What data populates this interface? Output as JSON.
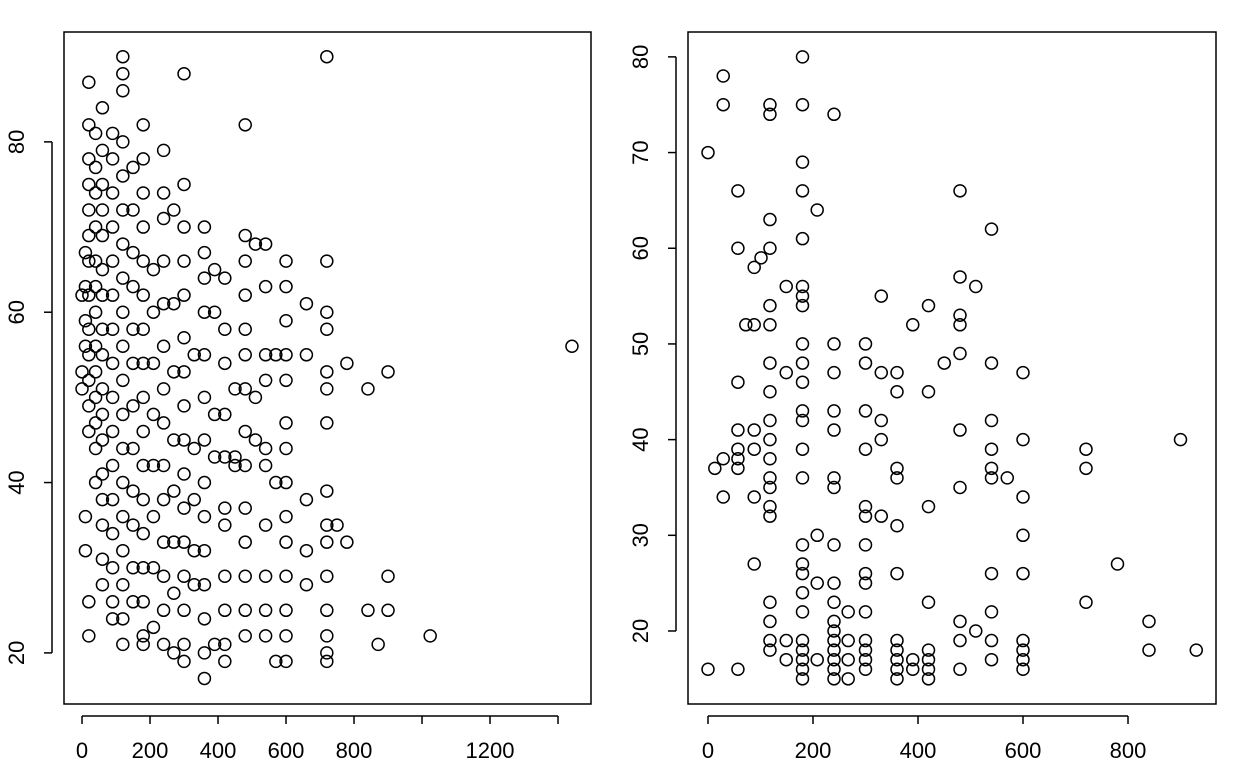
{
  "chart_data": [
    {
      "type": "scatter",
      "color": "#000000",
      "x": [
        0,
        0,
        0,
        10,
        10,
        10,
        10,
        10,
        10,
        20,
        20,
        20,
        20,
        20,
        20,
        20,
        20,
        20,
        20,
        20,
        20,
        20,
        20,
        20,
        40,
        40,
        40,
        40,
        40,
        40,
        40,
        40,
        40,
        40,
        40,
        40,
        40,
        60,
        60,
        60,
        60,
        60,
        60,
        60,
        60,
        60,
        60,
        60,
        60,
        60,
        60,
        60,
        60,
        60,
        90,
        90,
        90,
        90,
        90,
        90,
        90,
        90,
        90,
        90,
        90,
        90,
        90,
        90,
        90,
        90,
        120,
        120,
        120,
        120,
        120,
        120,
        120,
        120,
        120,
        120,
        120,
        120,
        120,
        120,
        120,
        120,
        120,
        120,
        120,
        150,
        150,
        150,
        150,
        150,
        150,
        150,
        150,
        150,
        150,
        150,
        150,
        180,
        180,
        180,
        180,
        180,
        180,
        180,
        180,
        180,
        180,
        180,
        180,
        180,
        180,
        180,
        180,
        180,
        210,
        210,
        210,
        210,
        210,
        210,
        210,
        210,
        240,
        240,
        240,
        240,
        240,
        240,
        240,
        240,
        240,
        240,
        240,
        240,
        240,
        240,
        270,
        270,
        270,
        270,
        270,
        270,
        270,
        270,
        300,
        300,
        300,
        300,
        300,
        300,
        300,
        300,
        300,
        300,
        300,
        300,
        300,
        300,
        300,
        300,
        330,
        330,
        330,
        330,
        330,
        360,
        360,
        360,
        360,
        360,
        360,
        360,
        360,
        360,
        360,
        360,
        360,
        360,
        360,
        390,
        390,
        390,
        390,
        390,
        420,
        420,
        420,
        420,
        420,
        420,
        420,
        420,
        420,
        420,
        420,
        450,
        450,
        450,
        480,
        480,
        480,
        480,
        480,
        480,
        480,
        480,
        480,
        480,
        480,
        480,
        480,
        480,
        510,
        510,
        510,
        540,
        540,
        540,
        540,
        540,
        540,
        540,
        540,
        540,
        540,
        570,
        570,
        570,
        600,
        600,
        600,
        600,
        600,
        600,
        600,
        600,
        600,
        600,
        600,
        600,
        600,
        600,
        660,
        660,
        660,
        660,
        660,
        720,
        720,
        720,
        720,
        720,
        720,
        720,
        720,
        720,
        720,
        720,
        720,
        720,
        720,
        720,
        750,
        779,
        779,
        841,
        841,
        871,
        900,
        900,
        900,
        1024,
        1441
      ],
      "values": [
        53,
        51,
        62,
        67,
        63,
        59,
        56,
        36,
        32,
        82,
        78,
        75,
        72,
        69,
        66,
        62,
        58,
        55,
        52,
        49,
        46,
        22,
        26,
        87,
        81,
        77,
        74,
        70,
        66,
        63,
        60,
        56,
        53,
        50,
        47,
        44,
        40,
        84,
        79,
        75,
        72,
        69,
        65,
        62,
        58,
        55,
        51,
        48,
        45,
        41,
        38,
        35,
        31,
        28,
        81,
        78,
        74,
        70,
        66,
        62,
        58,
        54,
        50,
        46,
        42,
        38,
        34,
        30,
        26,
        24,
        90,
        88,
        86,
        80,
        76,
        72,
        68,
        64,
        60,
        56,
        52,
        48,
        44,
        40,
        36,
        32,
        28,
        24,
        21,
        77,
        72,
        67,
        63,
        58,
        54,
        49,
        44,
        39,
        35,
        30,
        26,
        82,
        78,
        74,
        70,
        66,
        62,
        58,
        54,
        50,
        46,
        42,
        38,
        34,
        30,
        26,
        22,
        21,
        65,
        60,
        54,
        48,
        42,
        36,
        30,
        23,
        79,
        74,
        71,
        66,
        61,
        56,
        51,
        47,
        42,
        38,
        33,
        29,
        25,
        21,
        72,
        61,
        53,
        45,
        39,
        33,
        27,
        20,
        88,
        75,
        70,
        66,
        62,
        57,
        53,
        49,
        45,
        41,
        37,
        33,
        29,
        25,
        21,
        19,
        55,
        44,
        38,
        32,
        28,
        70,
        67,
        64,
        60,
        55,
        50,
        45,
        40,
        36,
        32,
        28,
        24,
        20,
        17,
        65,
        60,
        48,
        43,
        21,
        64,
        58,
        54,
        48,
        43,
        37,
        35,
        29,
        25,
        21,
        19,
        51,
        43,
        42,
        82,
        69,
        66,
        62,
        58,
        55,
        51,
        46,
        42,
        37,
        33,
        29,
        25,
        22,
        68,
        50,
        45,
        68,
        63,
        55,
        52,
        44,
        42,
        35,
        29,
        25,
        22,
        55,
        40,
        19,
        66,
        63,
        59,
        55,
        52,
        47,
        44,
        40,
        36,
        33,
        29,
        25,
        22,
        19,
        61,
        55,
        38,
        32,
        28,
        90,
        66,
        60,
        58,
        53,
        51,
        47,
        39,
        35,
        33,
        29,
        25,
        22,
        20,
        19,
        35,
        54,
        33,
        51,
        25,
        21,
        53,
        29,
        25,
        22,
        56
      ],
      "xlim": [
        -53,
        1497
      ],
      "ylim": [
        14,
        92.9
      ],
      "xticks": [
        0,
        200,
        400,
        600,
        800,
        {
          "value": 1000,
          "label": null
        },
        1200,
        {
          "value": 1400,
          "label": null
        }
      ],
      "yticks": [
        20,
        40,
        60,
        80
      ]
    },
    {
      "type": "scatter",
      "color": "#000000",
      "x": [
        0,
        0,
        13,
        29,
        29,
        29,
        29,
        57,
        57,
        57,
        57,
        57,
        57,
        57,
        57,
        72,
        88,
        88,
        88,
        88,
        88,
        88,
        101,
        118,
        118,
        118,
        118,
        118,
        118,
        118,
        118,
        118,
        118,
        118,
        118,
        118,
        118,
        118,
        118,
        118,
        118,
        118,
        149,
        149,
        149,
        149,
        180,
        180,
        180,
        180,
        180,
        180,
        180,
        180,
        180,
        180,
        180,
        180,
        180,
        180,
        180,
        180,
        180,
        180,
        180,
        180,
        180,
        180,
        180,
        180,
        180,
        208,
        208,
        208,
        208,
        240,
        240,
        240,
        240,
        240,
        240,
        240,
        240,
        240,
        240,
        240,
        240,
        240,
        240,
        240,
        240,
        240,
        267,
        267,
        267,
        267,
        300,
        300,
        300,
        300,
        300,
        300,
        300,
        300,
        300,
        300,
        300,
        300,
        300,
        300,
        330,
        330,
        330,
        330,
        330,
        360,
        360,
        360,
        360,
        360,
        360,
        360,
        360,
        360,
        360,
        360,
        390,
        390,
        390,
        420,
        420,
        420,
        420,
        420,
        420,
        420,
        420,
        450,
        480,
        480,
        480,
        480,
        480,
        480,
        480,
        480,
        480,
        480,
        510,
        510,
        540,
        540,
        540,
        540,
        540,
        540,
        540,
        540,
        540,
        540,
        570,
        600,
        600,
        600,
        600,
        600,
        600,
        600,
        600,
        600,
        720,
        720,
        720,
        780,
        840,
        840,
        900,
        930
      ],
      "values": [
        70,
        16,
        37,
        38,
        34,
        78,
        75,
        66,
        60,
        46,
        41,
        39,
        38,
        37,
        16,
        52,
        52,
        58,
        41,
        39,
        34,
        27,
        59,
        63,
        75,
        74,
        60,
        54,
        52,
        48,
        45,
        42,
        40,
        38,
        36,
        35,
        33,
        32,
        23,
        21,
        19,
        18,
        19,
        17,
        56,
        47,
        80,
        75,
        69,
        66,
        61,
        56,
        55,
        54,
        50,
        48,
        46,
        43,
        42,
        39,
        36,
        29,
        27,
        26,
        24,
        22,
        19,
        18,
        17,
        16,
        15,
        64,
        30,
        25,
        17,
        74,
        50,
        47,
        43,
        41,
        36,
        35,
        29,
        25,
        23,
        21,
        20,
        19,
        18,
        17,
        16,
        15,
        22,
        19,
        17,
        15,
        50,
        48,
        43,
        39,
        33,
        32,
        29,
        26,
        25,
        22,
        19,
        18,
        17,
        16,
        55,
        47,
        42,
        40,
        32,
        47,
        45,
        37,
        36,
        31,
        26,
        19,
        18,
        17,
        16,
        15,
        52,
        17,
        16,
        54,
        45,
        33,
        23,
        18,
        17,
        16,
        15,
        48,
        66,
        57,
        53,
        52,
        49,
        41,
        35,
        21,
        19,
        16,
        56,
        20,
        62,
        48,
        42,
        39,
        37,
        36,
        26,
        22,
        19,
        17,
        36,
        47,
        40,
        34,
        30,
        26,
        19,
        18,
        17,
        16,
        39,
        37,
        23,
        27,
        21,
        18,
        40,
        18
      ],
      "xlim": [
        -38.1,
        967.6
      ],
      "ylim": [
        12.37,
        82.6
      ],
      "xticks": [
        0,
        200,
        400,
        600,
        800
      ],
      "yticks": [
        20,
        30,
        40,
        50,
        60,
        70,
        80
      ]
    }
  ]
}
